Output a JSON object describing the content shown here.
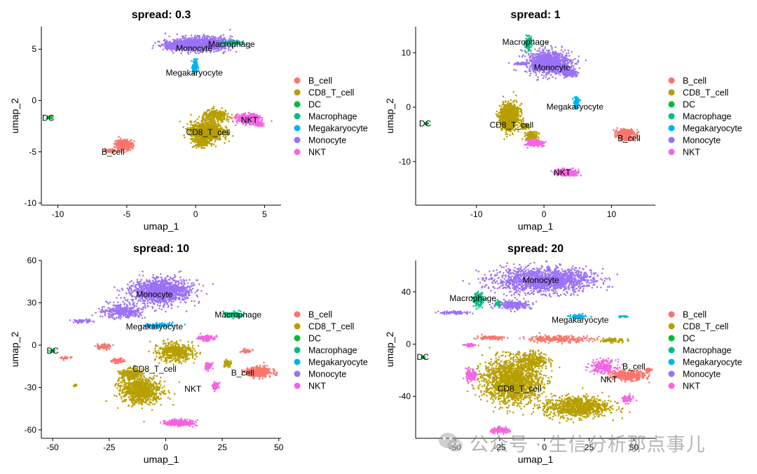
{
  "palette": {
    "B_cell": "#F8766D",
    "CD8_T_cell": "#B79F00",
    "DC": "#00BA38",
    "Macrophage": "#00BF7D",
    "Megakaryocyte": "#00B4EF",
    "Monocyte": "#9B72F5",
    "NKT": "#F564E3"
  },
  "watermark": {
    "icon": "wechat-icon",
    "text": "公众号 · 生信分析那点事儿"
  },
  "chart_data": [
    {
      "type": "scatter",
      "title": "spread: 0.3",
      "xlabel": "umap_1",
      "ylabel": "umap_2",
      "xlim": [
        -11.2,
        6.2
      ],
      "ylim": [
        -10.2,
        7.2
      ],
      "xticks": [
        -10,
        -5,
        0,
        5
      ],
      "yticks": [
        -10,
        -5,
        0,
        5
      ],
      "grid": false,
      "legend": "right",
      "legend_entries": [
        "B_cell",
        "CD8_T_cell",
        "DC",
        "Macrophage",
        "Megakaryocyte",
        "Monocyte",
        "NKT"
      ],
      "clusters": [
        {
          "name": "Monocyte",
          "label": "Monocyte",
          "label_at": [
            -0.1,
            5.1
          ],
          "blobs": [
            [
              0.4,
              5.5,
              2.2,
              0.65,
              1200
            ],
            [
              -1.6,
              5.3,
              0.7,
              0.4,
              200
            ]
          ]
        },
        {
          "name": "Macrophage",
          "label": "Macrophage",
          "label_at": [
            2.6,
            5.5
          ],
          "blobs": [
            [
              2.6,
              5.6,
              0.75,
              0.18,
              140
            ]
          ]
        },
        {
          "name": "Megakaryocyte",
          "label": "Megakaryocyte",
          "label_at": [
            -0.1,
            2.7
          ],
          "blobs": [
            [
              -0.05,
              3.3,
              0.18,
              0.7,
              120
            ]
          ]
        },
        {
          "name": "DC",
          "label": "DC",
          "label_at": [
            -10.7,
            -1.7
          ],
          "blobs": [
            [
              -10.55,
              -1.65,
              0.15,
              0.12,
              25
            ]
          ]
        },
        {
          "name": "CD8_T_cell",
          "label": "CD8_T_cell",
          "label_at": [
            0.9,
            -3.1
          ],
          "blobs": [
            [
              0.8,
              -3.0,
              1.15,
              0.9,
              1100
            ],
            [
              1.5,
              -1.5,
              1.0,
              0.55,
              300
            ],
            [
              0.5,
              -4.1,
              0.6,
              0.45,
              150
            ]
          ]
        },
        {
          "name": "NKT",
          "label": "NKT",
          "label_at": [
            3.9,
            -1.9
          ],
          "blobs": [
            [
              3.8,
              -1.8,
              0.8,
              0.45,
              450
            ],
            [
              4.6,
              -2.3,
              0.3,
              0.25,
              60
            ]
          ]
        },
        {
          "name": "B_cell",
          "label": "B_cell",
          "label_at": [
            -6.0,
            -5.0
          ],
          "blobs": [
            [
              -5.2,
              -4.3,
              0.6,
              0.5,
              350
            ],
            [
              -6.2,
              -4.9,
              0.5,
              0.15,
              80
            ]
          ]
        }
      ]
    },
    {
      "type": "scatter",
      "title": "spread: 1",
      "xlabel": "umap_1",
      "ylabel": "umap_2",
      "xlim": [
        -19,
        16.5
      ],
      "ylim": [
        -18,
        14.8
      ],
      "xticks": [
        -10,
        0,
        10
      ],
      "yticks": [
        -10,
        0,
        10
      ],
      "grid": false,
      "legend": "right",
      "legend_entries": [
        "B_cell",
        "CD8_T_cell",
        "DC",
        "Macrophage",
        "Megakaryocyte",
        "Monocyte",
        "NKT"
      ],
      "clusters": [
        {
          "name": "Monocyte",
          "label": "Monocyte",
          "label_at": [
            1.2,
            7.3
          ],
          "blobs": [
            [
              0.8,
              8.2,
              3.2,
              1.9,
              1100
            ],
            [
              3.8,
              6.3,
              1.1,
              0.7,
              200
            ],
            [
              -3.2,
              8.0,
              1.2,
              0.25,
              60
            ]
          ]
        },
        {
          "name": "Macrophage",
          "label": "Macrophage",
          "label_at": [
            -2.7,
            12.0
          ],
          "blobs": [
            [
              -2.3,
              11.8,
              0.45,
              1.4,
              120
            ]
          ]
        },
        {
          "name": "Megakaryocyte",
          "label": "Megakaryocyte",
          "label_at": [
            4.6,
            0.1
          ],
          "blobs": [
            [
              4.8,
              1.0,
              0.35,
              0.9,
              110
            ]
          ]
        },
        {
          "name": "DC",
          "label": "DC",
          "label_at": [
            -17.6,
            -3.0
          ],
          "blobs": [
            [
              -17.4,
              -3.0,
              0.25,
              0.2,
              25
            ]
          ]
        },
        {
          "name": "CD8_T_cell",
          "label": "CD8_T_cell",
          "label_at": [
            -4.8,
            -3.3
          ],
          "blobs": [
            [
              -5.1,
              -1.8,
              1.4,
              2.4,
              1000
            ],
            [
              -3.0,
              -3.5,
              0.6,
              0.5,
              100
            ],
            [
              -1.8,
              -5.2,
              0.9,
              0.8,
              150
            ]
          ]
        },
        {
          "name": "NKT",
          "label": "NKT",
          "label_at": [
            2.7,
            -12.0
          ],
          "blobs": [
            [
              3.3,
              -12.0,
              1.6,
              0.55,
              350
            ],
            [
              -1.4,
              -6.6,
              1.1,
              0.6,
              200
            ]
          ]
        },
        {
          "name": "B_cell",
          "label": "B_cell",
          "label_at": [
            12.6,
            -5.7
          ],
          "blobs": [
            [
              12.2,
              -5.1,
              1.3,
              0.9,
              450
            ]
          ]
        }
      ]
    },
    {
      "type": "scatter",
      "title": "spread: 10",
      "xlabel": "umap_1",
      "ylabel": "umap_2",
      "xlim": [
        -55,
        51
      ],
      "ylim": [
        -66,
        60
      ],
      "xticks": [
        -50,
        -25,
        0,
        25,
        50
      ],
      "yticks": [
        -60,
        -30,
        0,
        30,
        60
      ],
      "grid": false,
      "legend": "right",
      "legend_entries": [
        "B_cell",
        "CD8_T_cell",
        "DC",
        "Macrophage",
        "Megakaryocyte",
        "Monocyte",
        "NKT"
      ],
      "clusters": [
        {
          "name": "Monocyte",
          "label": "Monocyte",
          "label_at": [
            -5.0,
            36.0
          ],
          "blobs": [
            [
              -2.0,
              38.0,
              13.0,
              8.5,
              1400
            ],
            [
              -19.0,
              24.0,
              9.0,
              5.0,
              350
            ],
            [
              -37.0,
              17.0,
              4.0,
              1.2,
              60
            ]
          ]
        },
        {
          "name": "Macrophage",
          "label": "Macrophage",
          "label_at": [
            32.0,
            21.5
          ],
          "blobs": [
            [
              30.0,
              21.5,
              4.5,
              2.0,
              150
            ]
          ]
        },
        {
          "name": "Megakaryocyte",
          "label": "Megakaryocyte",
          "label_at": [
            -5.0,
            13.0
          ],
          "blobs": [
            [
              -3.0,
              14.0,
              6.0,
              1.5,
              120
            ]
          ]
        },
        {
          "name": "DC",
          "label": "DC",
          "label_at": [
            -50.0,
            -4.0
          ],
          "blobs": [
            [
              -50.0,
              -4.0,
              1.0,
              1.0,
              25
            ]
          ]
        },
        {
          "name": "CD8_T_cell",
          "label": "CD8_T_cell",
          "label_at": [
            -5.0,
            -17.0
          ],
          "blobs": [
            [
              -11.0,
              -32.0,
              9.0,
              9.0,
              900
            ],
            [
              4.0,
              -5.0,
              8.0,
              6.0,
              500
            ],
            [
              -15.0,
              -20.0,
              5.0,
              4.0,
              200
            ],
            [
              27.0,
              -13.0,
              2.0,
              2.5,
              60
            ],
            [
              -40.0,
              -29.0,
              1.0,
              1.0,
              10
            ]
          ]
        },
        {
          "name": "NKT",
          "label": "NKT",
          "label_at": [
            12.0,
            -31.0
          ],
          "blobs": [
            [
              6.0,
              -55.0,
              6.5,
              2.0,
              300
            ],
            [
              22.0,
              -29.0,
              1.5,
              2.5,
              60
            ],
            [
              18.0,
              5.0,
              4.0,
              2.0,
              120
            ],
            [
              19.0,
              -15.0,
              1.5,
              2.5,
              50
            ]
          ]
        },
        {
          "name": "B_cell",
          "label": "B_cell",
          "label_at": [
            34.0,
            -19.5
          ],
          "blobs": [
            [
              41.0,
              -19.0,
              5.5,
              3.5,
              450
            ],
            [
              -27.0,
              -1.0,
              3.0,
              2.0,
              80
            ],
            [
              -21.0,
              -11.0,
              3.0,
              2.0,
              60
            ],
            [
              -44.0,
              -9.0,
              2.0,
              1.0,
              30
            ],
            [
              36.0,
              -4.0,
              2.5,
              1.5,
              40
            ]
          ]
        }
      ]
    },
    {
      "type": "scatter",
      "title": "spread: 20",
      "xlabel": "umap_1",
      "ylabel": "umap_2",
      "xlim": [
        -72,
        62
      ],
      "ylim": [
        -72,
        64
      ],
      "xticks": [
        -50,
        -25,
        0,
        25,
        50
      ],
      "yticks": [
        -40,
        0,
        40
      ],
      "grid": false,
      "legend": "right",
      "legend_entries": [
        "B_cell",
        "CD8_T_cell",
        "DC",
        "Macrophage",
        "Megakaryocyte",
        "Monocyte",
        "NKT"
      ],
      "clusters": [
        {
          "name": "Monocyte",
          "label": "Monocyte",
          "label_at": [
            -2.0,
            49.0
          ],
          "blobs": [
            [
              0.0,
              49.0,
              28.0,
              9.0,
              1600
            ],
            [
              -17.0,
              30.0,
              10.0,
              3.0,
              250
            ],
            [
              -50.0,
              24.0,
              9.0,
              1.2,
              80
            ]
          ]
        },
        {
          "name": "Macrophage",
          "label": "Macrophage",
          "label_at": [
            -40.0,
            35.0
          ],
          "blobs": [
            [
              -37.0,
              34.0,
              2.5,
              5.0,
              180
            ],
            [
              -26.0,
              31.0,
              2.0,
              2.0,
              30
            ]
          ]
        },
        {
          "name": "Megakaryocyte",
          "label": "Megakaryocyte",
          "label_at": [
            20.0,
            18.5
          ],
          "blobs": [
            [
              19.0,
              21.0,
              4.0,
              1.5,
              110
            ],
            [
              44.0,
              21.0,
              2.5,
              0.7,
              25
            ]
          ]
        },
        {
          "name": "DC",
          "label": "DC",
          "label_at": [
            -68.0,
            -10.0
          ],
          "blobs": [
            [
              -68.0,
              -10.0,
              1.0,
              1.0,
              25
            ]
          ]
        },
        {
          "name": "CD8_T_cell",
          "label": "CD8_T_cell",
          "label_at": [
            -14.0,
            -34.0
          ],
          "blobs": [
            [
              -18.0,
              -28.0,
              16.0,
              17.0,
              1700
            ],
            [
              18.0,
              -48.0,
              18.0,
              8.0,
              900
            ],
            [
              -6.0,
              -12.0,
              8.0,
              6.0,
              250
            ],
            [
              38.0,
              3.0,
              7.0,
              2.0,
              80
            ]
          ]
        },
        {
          "name": "NKT",
          "label": "NKT",
          "label_at": [
            36.0,
            -27.0
          ],
          "blobs": [
            [
              -41.0,
              -24.0,
              3.0,
              5.0,
              120
            ],
            [
              -24.0,
              -66.0,
              6.0,
              2.0,
              150
            ],
            [
              33.0,
              -17.0,
              7.0,
              5.0,
              220
            ],
            [
              46.0,
              -42.0,
              4.0,
              3.0,
              60
            ],
            [
              -42.0,
              -1.0,
              3.0,
              1.5,
              40
            ]
          ]
        },
        {
          "name": "B_cell",
          "label": "B_cell",
          "label_at": [
            50.0,
            -17.0
          ],
          "blobs": [
            [
              47.0,
              -24.0,
              9.0,
              3.5,
              450
            ],
            [
              8.0,
              4.0,
              18.0,
              2.5,
              250
            ],
            [
              -30.0,
              5.0,
              8.0,
              1.5,
              80
            ],
            [
              58.0,
              -20.0,
              2.0,
              2.0,
              40
            ]
          ]
        }
      ]
    }
  ]
}
